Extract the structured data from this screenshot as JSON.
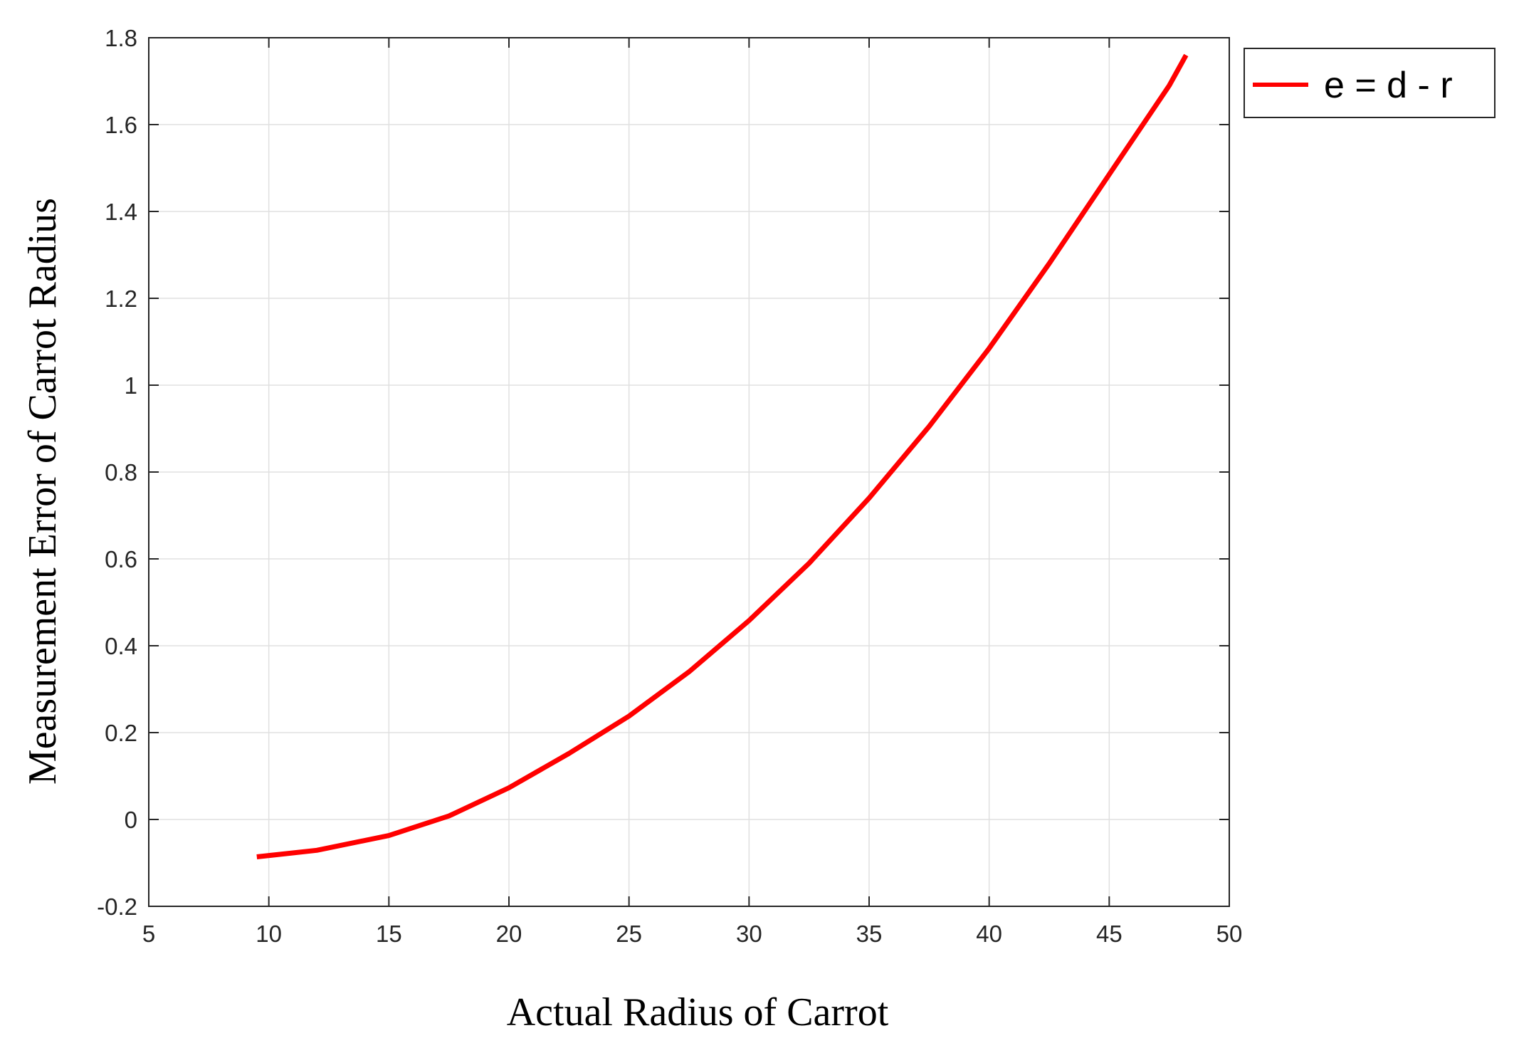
{
  "chart_data": {
    "type": "line",
    "title": "",
    "xlabel": "Actual Radius of Carrot",
    "ylabel": "Measurement Error of Carrot Radius",
    "xlim": [
      5,
      50
    ],
    "ylim": [
      -0.2,
      1.8
    ],
    "xticks": [
      "5",
      "10",
      "15",
      "20",
      "25",
      "30",
      "35",
      "40",
      "45",
      "50"
    ],
    "yticks": [
      "-0.2",
      "0",
      "0.2",
      "0.4",
      "0.6",
      "0.8",
      "1",
      "1.2",
      "1.4",
      "1.6",
      "1.8"
    ],
    "grid": true,
    "legend_position": "outside-top-right",
    "series": [
      {
        "name": "e = d - r",
        "color": "#ff0000",
        "x": [
          9.5,
          12,
          15,
          17.5,
          20,
          22.5,
          25,
          27.5,
          30,
          32.5,
          35,
          37.5,
          40,
          42.5,
          45,
          47.5,
          48.2
        ],
        "y": [
          -0.086,
          -0.071,
          -0.037,
          0.008,
          0.073,
          0.152,
          0.238,
          0.34,
          0.458,
          0.59,
          0.74,
          0.905,
          1.085,
          1.28,
          1.485,
          1.69,
          1.76
        ]
      }
    ]
  }
}
